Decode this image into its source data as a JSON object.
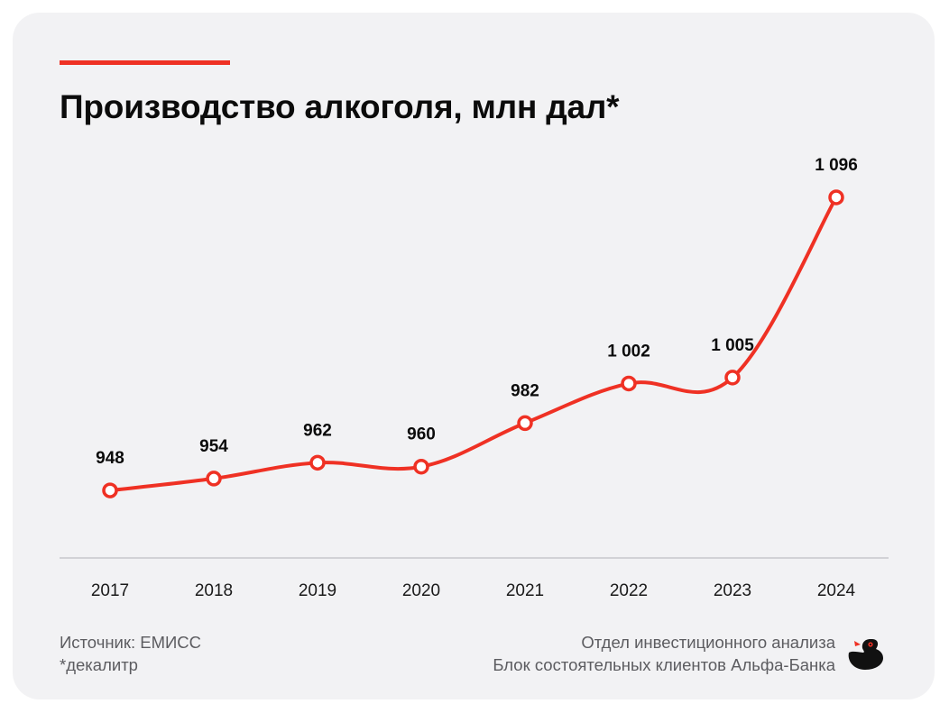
{
  "title": "Производство алкоголя, млн дал*",
  "colors": {
    "accent": "#ef3124",
    "text": "#0b0b0b",
    "muted": "#5c5c60",
    "background": "#f2f2f4",
    "axis": "#d2d2d6"
  },
  "chart_data": {
    "type": "line",
    "title": "Производство алкоголя, млн дал*",
    "xlabel": "",
    "ylabel": "",
    "categories": [
      "2017",
      "2018",
      "2019",
      "2020",
      "2021",
      "2022",
      "2023",
      "2024"
    ],
    "series": [
      {
        "values": [
          948,
          954,
          962,
          960,
          982,
          1002,
          1005,
          1096
        ]
      }
    ],
    "data_labels": [
      "948",
      "954",
      "962",
      "960",
      "982",
      "1 002",
      "1 005",
      "1 096"
    ],
    "ylim": [
      918,
      1116
    ],
    "grid": false,
    "legend": "none",
    "line_style": "smooth",
    "marker": "hollow-circle"
  },
  "footer": {
    "source": "Источник: ЕМИСС",
    "note": "*декалитр",
    "department": "Отдел инвестиционного анализа",
    "division": "Блок состоятельных клиентов Альфа-Банка"
  },
  "logo_icon": "duck-icon"
}
